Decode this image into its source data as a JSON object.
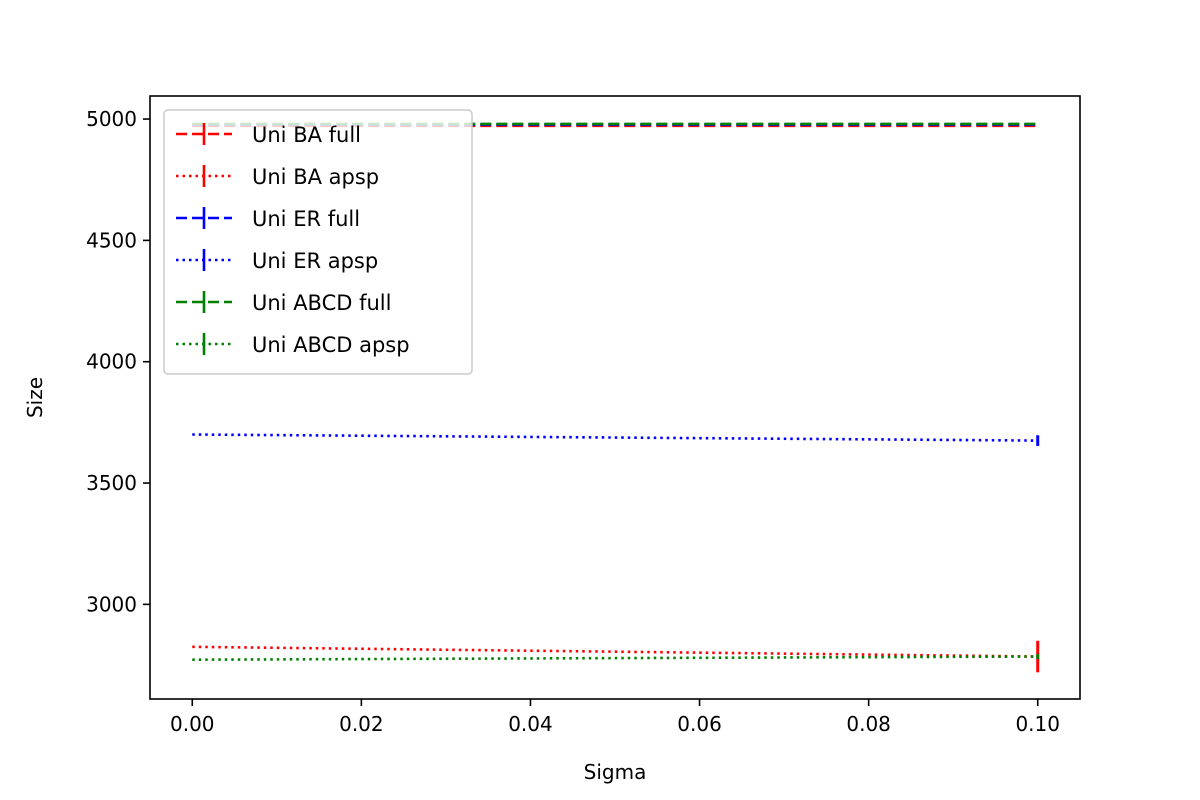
{
  "chart_data": {
    "type": "line",
    "xlabel": "Sigma",
    "ylabel": "Size",
    "xlim": [
      -0.005,
      0.105
    ],
    "ylim": [
      2610,
      5095
    ],
    "xticks": [
      0.0,
      0.02,
      0.04,
      0.06,
      0.08,
      0.1
    ],
    "xtick_labels": [
      "0.00",
      "0.02",
      "0.04",
      "0.06",
      "0.08",
      "0.10"
    ],
    "yticks": [
      3000,
      3500,
      4000,
      4500,
      5000
    ],
    "ytick_labels": [
      "3000",
      "3500",
      "4000",
      "4500",
      "5000"
    ],
    "grid": false,
    "legend_position": "top-left",
    "series": [
      {
        "name": "Uni BA full",
        "color": "#ff0000",
        "style": "dashed",
        "x": [
          0.0,
          0.1
        ],
        "y": [
          4972,
          4972
        ],
        "yerr": [
          0,
          0
        ]
      },
      {
        "name": "Uni BA apsp",
        "color": "#ff0000",
        "style": "dotted",
        "x": [
          0.0,
          0.1
        ],
        "y": [
          2825,
          2785
        ],
        "yerr": [
          0,
          65
        ]
      },
      {
        "name": "Uni ER full",
        "color": "#0000ff",
        "style": "dashed",
        "x": [
          0.0,
          0.1
        ],
        "y": [
          4977,
          4977
        ],
        "yerr": [
          0,
          0
        ]
      },
      {
        "name": "Uni ER apsp",
        "color": "#0000ff",
        "style": "dotted",
        "x": [
          0.0,
          0.1
        ],
        "y": [
          3700,
          3675
        ],
        "yerr": [
          0,
          22
        ]
      },
      {
        "name": "Uni ABCD full",
        "color": "#008000",
        "style": "dashed",
        "x": [
          0.0,
          0.1
        ],
        "y": [
          4980,
          4980
        ],
        "yerr": [
          0,
          0
        ]
      },
      {
        "name": "Uni ABCD apsp",
        "color": "#008000",
        "style": "dotted",
        "x": [
          0.0,
          0.1
        ],
        "y": [
          2772,
          2785
        ],
        "yerr": [
          0,
          10
        ]
      }
    ]
  }
}
